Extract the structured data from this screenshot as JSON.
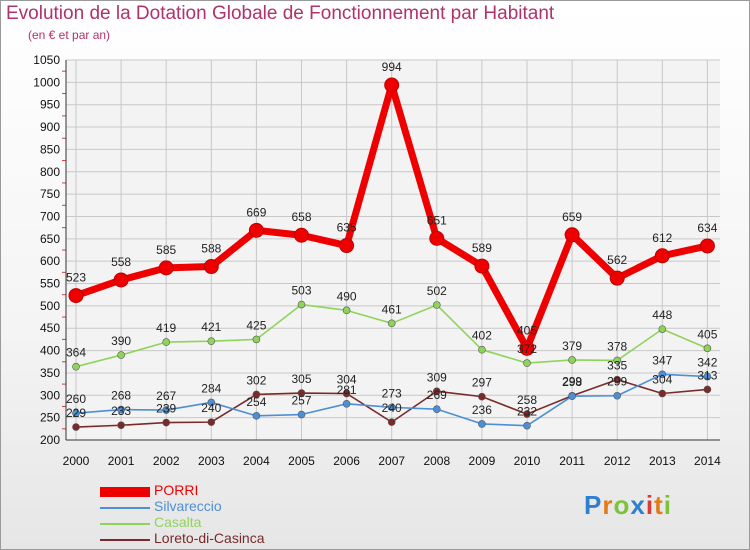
{
  "header": {
    "title": "Evolution de la Dotation Globale de Fonctionnement par Habitant",
    "subtitle": "(en € et par an)"
  },
  "logo": {
    "text": "Proxiti",
    "letters": [
      "P",
      "r",
      "o",
      "x",
      "i",
      "t",
      "i"
    ],
    "colors": [
      "#2f7fd0",
      "#e37b19",
      "#7cc23a",
      "#2f7fd0",
      "#d93a3a",
      "#e37b19",
      "#7cc23a"
    ]
  },
  "chart_data": {
    "type": "line",
    "title": "Evolution de la Dotation Globale de Fonctionnement par Habitant",
    "subtitle": "(en € et par an)",
    "xlabel": "",
    "ylabel": "",
    "x": [
      "2000",
      "2001",
      "2002",
      "2003",
      "2004",
      "2005",
      "2006",
      "2007",
      "2008",
      "2009",
      "2010",
      "2011",
      "2012",
      "2013",
      "2014"
    ],
    "ylim": [
      200,
      1050
    ],
    "yticks": [
      200,
      250,
      300,
      350,
      400,
      450,
      500,
      550,
      600,
      650,
      700,
      750,
      800,
      850,
      900,
      950,
      1000,
      1050
    ],
    "grid": true,
    "legend_position": "bottom-left",
    "series": [
      {
        "name": "PORRI",
        "color": "#ee0000",
        "values": [
          523,
          558,
          585,
          588,
          669,
          658,
          635,
          994,
          651,
          589,
          405,
          659,
          562,
          612,
          634
        ],
        "labels": [
          "523",
          "558",
          "585",
          "588",
          "669",
          "658",
          "635",
          "994",
          "651",
          "589",
          "405",
          "659",
          "562",
          "612",
          "634"
        ]
      },
      {
        "name": "Silvareccio",
        "color": "#4d8fd6",
        "values": [
          260,
          268,
          267,
          284,
          254,
          257,
          281,
          273,
          269,
          236,
          232,
          298,
          299,
          347,
          342
        ],
        "labels": [
          "260",
          "268",
          "267",
          "284",
          "254",
          "257",
          "281",
          "273",
          "269",
          "236",
          "232",
          "298",
          "299",
          "347",
          "342"
        ]
      },
      {
        "name": "Casalta",
        "color": "#8fd45a",
        "values": [
          364,
          390,
          419,
          421,
          425,
          503,
          490,
          461,
          502,
          402,
          372,
          379,
          378,
          448,
          405
        ],
        "labels": [
          "364",
          "390",
          "419",
          "421",
          "425",
          "503",
          "490",
          "461",
          "502",
          "402",
          "372",
          "379",
          "378",
          "448",
          "405"
        ]
      },
      {
        "name": "Loreto-di-Casinca",
        "color": "#7a2a2a",
        "values": [
          229,
          233,
          239,
          240,
          302,
          305,
          304,
          240,
          309,
          297,
          258,
          299,
          335,
          304,
          313
        ],
        "labels": [
          "229",
          "233",
          "239",
          "240",
          "302",
          "305",
          "304",
          "240",
          "309",
          "297",
          "258",
          "299",
          "335",
          "304",
          "313"
        ]
      }
    ]
  }
}
